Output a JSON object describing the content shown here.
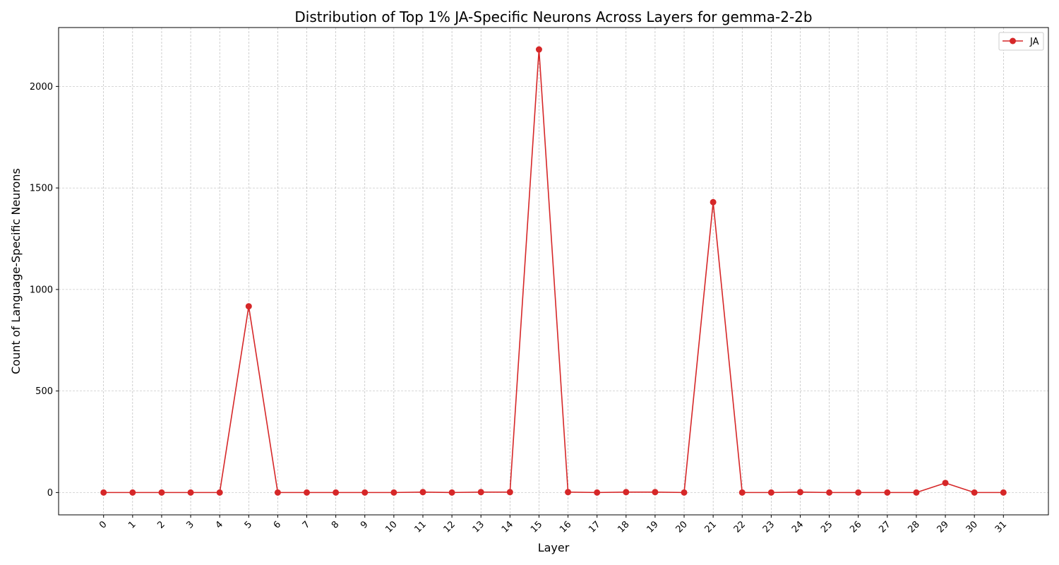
{
  "chart_data": {
    "type": "line",
    "title": "Distribution of Top 1% JA-Specific Neurons Across Layers for gemma-2-2b",
    "xlabel": "Layer",
    "ylabel": "Count of Language-Specific Neurons",
    "x": [
      0,
      1,
      2,
      3,
      4,
      5,
      6,
      7,
      8,
      9,
      10,
      11,
      12,
      13,
      14,
      15,
      16,
      17,
      18,
      19,
      20,
      21,
      22,
      23,
      24,
      25,
      26,
      27,
      28,
      29,
      30,
      31
    ],
    "x_tick_labels": [
      "0",
      "1",
      "2",
      "3",
      "4",
      "5",
      "6",
      "7",
      "8",
      "9",
      "10",
      "11",
      "12",
      "13",
      "14",
      "15",
      "16",
      "17",
      "18",
      "19",
      "20",
      "21",
      "22",
      "23",
      "24",
      "25",
      "26",
      "27",
      "28",
      "29",
      "30",
      "31"
    ],
    "y_ticks": [
      0,
      500,
      1000,
      1500,
      2000
    ],
    "ylim": [
      -110,
      2290
    ],
    "xlim": [
      -1.55,
      32.55
    ],
    "grid": true,
    "legend_position": "top-right",
    "series": [
      {
        "name": "JA",
        "color": "#d62728",
        "values": [
          0,
          0,
          0,
          0,
          0,
          917,
          0,
          0,
          0,
          0,
          0,
          2,
          0,
          2,
          2,
          2182,
          2,
          0,
          2,
          2,
          0,
          1430,
          0,
          0,
          2,
          0,
          0,
          0,
          0,
          47,
          0,
          0
        ]
      }
    ]
  }
}
